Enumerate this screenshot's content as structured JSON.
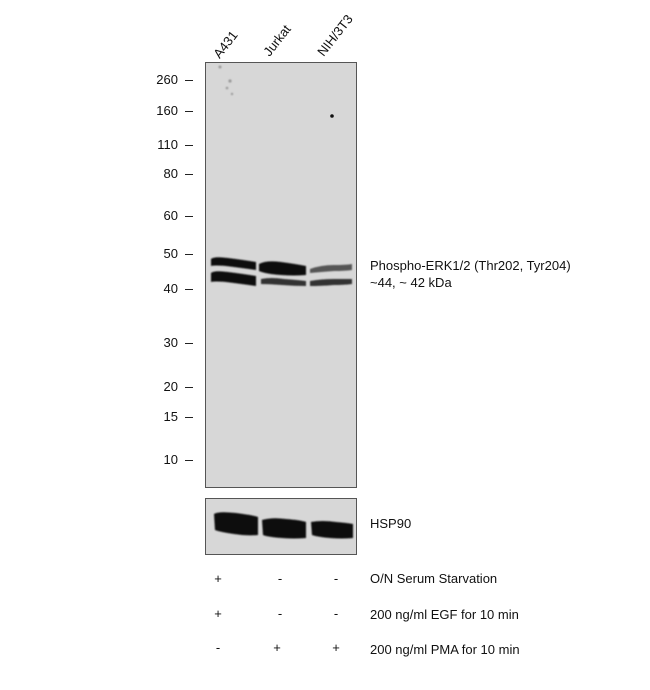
{
  "lanes": [
    "A431",
    "Jurkat",
    "NIH/3T3"
  ],
  "mw_markers": [
    "260",
    "160",
    "110",
    "80",
    "60",
    "50",
    "40",
    "30",
    "20",
    "15",
    "10"
  ],
  "target": {
    "line1": "Phospho-ERK1/2 (Thr202, Tyr204)",
    "line2": "~44, ~ 42 kDa"
  },
  "loading_control": "HSP90",
  "conditions": [
    {
      "label": "O/N Serum Starvation",
      "signs": [
        "+",
        "-",
        "-"
      ]
    },
    {
      "label": "200 ng/ml EGF for 10 min",
      "signs": [
        "+",
        "-",
        "-"
      ]
    },
    {
      "label": "200 ng/ml PMA for 10 min",
      "signs": [
        "-",
        "+",
        "+"
      ]
    }
  ]
}
